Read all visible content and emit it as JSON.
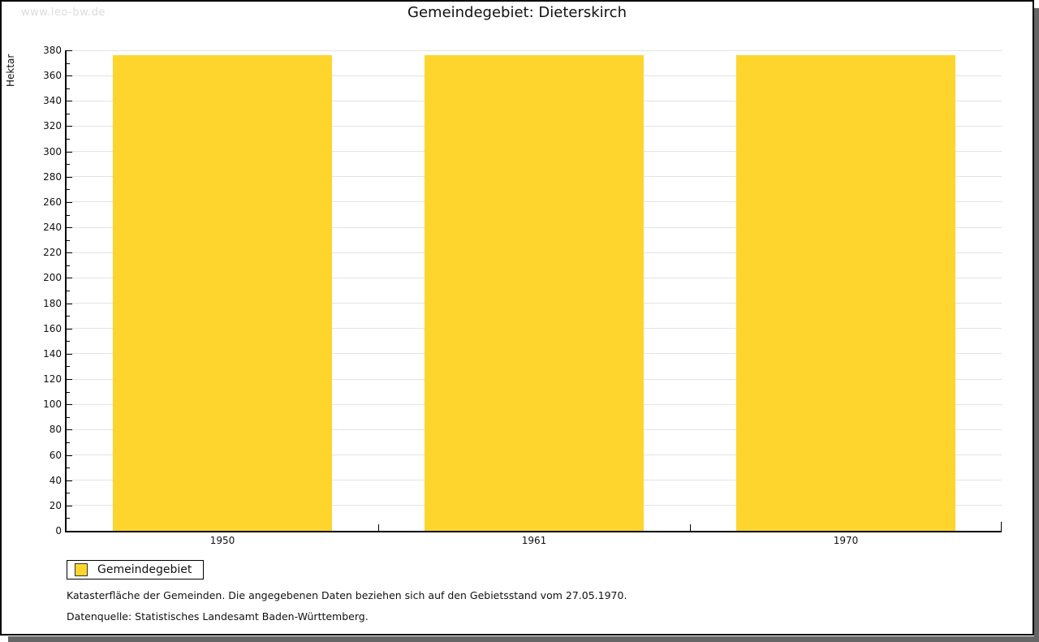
{
  "watermark": "www.leo-bw.de",
  "title": "Gemeindegebiet: Dieterskirch",
  "chart_data": {
    "type": "bar",
    "categories": [
      "1950",
      "1961",
      "1970"
    ],
    "series": [
      {
        "name": "Gemeindegebiet",
        "values": [
          376,
          376,
          376
        ]
      }
    ],
    "title": "Gemeindegebiet: Dieterskirch",
    "xlabel": "",
    "ylabel": "Hektar",
    "ylim": [
      0,
      380
    ],
    "y_major_step": 20,
    "y_minor_step": 10,
    "grid": true,
    "bar_color": "#fdd52d",
    "legend_position": "bottom-left"
  },
  "legend": {
    "items": [
      {
        "label": "Gemeindegebiet",
        "color": "#fdd52d"
      }
    ]
  },
  "footnotes": [
    "Katasterfläche der Gemeinden. Die angegebenen Daten beziehen sich auf den Gebietsstand vom 27.05.1970.",
    "Datenquelle: Statistisches Landesamt Baden-Württemberg."
  ]
}
